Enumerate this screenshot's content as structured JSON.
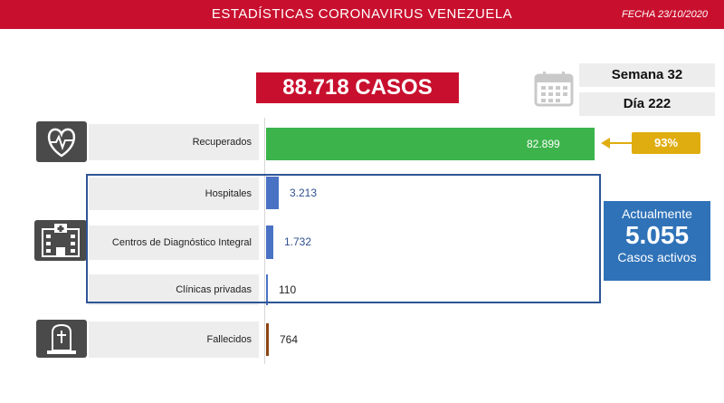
{
  "header": {
    "title": "ESTADÍSTICAS CORONAVIRUS VENEZUELA",
    "date": "FECHA 23/10/2020"
  },
  "summary": {
    "total": "88.718 CASOS",
    "week": "Semana 32",
    "day": "Día 222"
  },
  "recovered_pct": "93%",
  "active": {
    "label": "Actualmente",
    "value": "5.055",
    "sub": "Casos activos"
  },
  "icons": [
    "calendar-icon",
    "heart-pulse-icon",
    "hospital-icon",
    "tombstone-icon",
    "arrow-left-icon"
  ],
  "colors": {
    "header": "#c8102e",
    "recovered_bar": "#3cb44b",
    "hospital_bar": "#4a72c4",
    "deaths_bar": "#8b4513",
    "badge": "#e0ad10",
    "active_box": "#2f72b8"
  },
  "chart_data": {
    "type": "bar",
    "orientation": "horizontal",
    "categories": [
      "Recuperados",
      "Hospitales",
      "Centros de Diagnóstico Integral",
      "Clínicas privadas",
      "Fallecidos"
    ],
    "values": [
      82899,
      3213,
      1732,
      110,
      764
    ],
    "value_labels": [
      "82.899",
      "3.213",
      "1.732",
      "110",
      "764"
    ],
    "xlim": [
      0,
      82899
    ],
    "title": "",
    "xlabel": "",
    "ylabel": ""
  }
}
